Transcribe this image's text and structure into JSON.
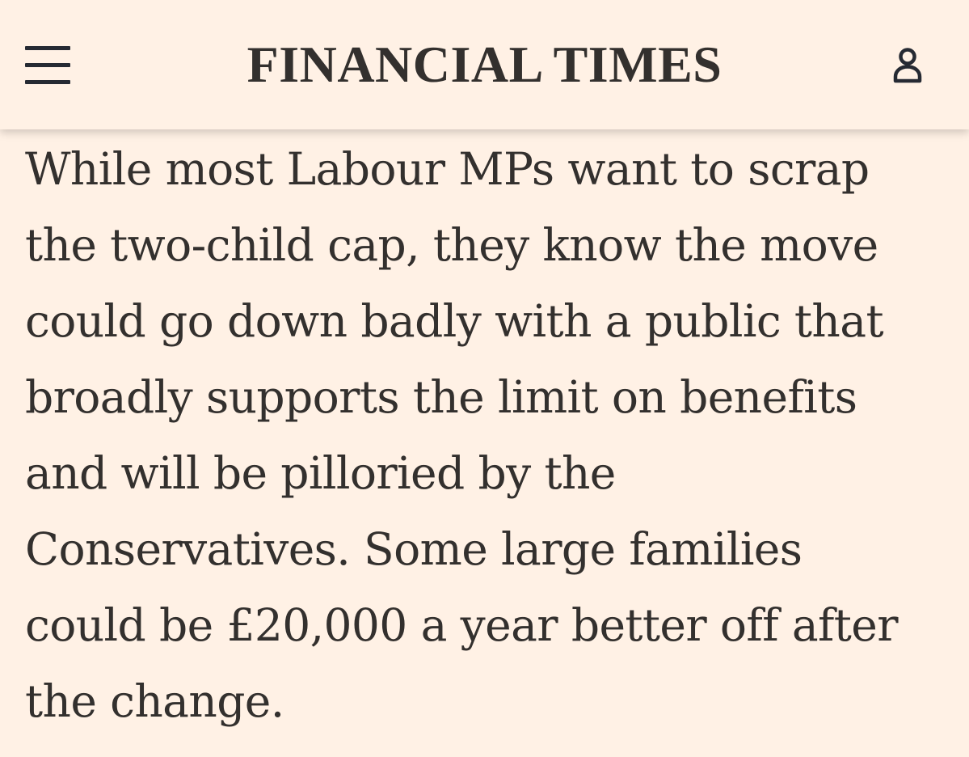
{
  "header": {
    "brand": "FINANCIAL TIMES",
    "menu_icon": "hamburger-menu-icon",
    "account_icon": "user-account-icon"
  },
  "article": {
    "lines": [
      "While most Labour MPs want to scrap",
      "the two-child cap, they know the move",
      "could go down badly with a public that",
      "broadly supports the limit on benefits",
      "and will be pilloried by the",
      "Conservatives. Some large families",
      "could be £20,000 a year better off after",
      "the change."
    ]
  },
  "colors": {
    "background": "#fff1e5",
    "text": "#33302e",
    "icon": "#262a33"
  }
}
